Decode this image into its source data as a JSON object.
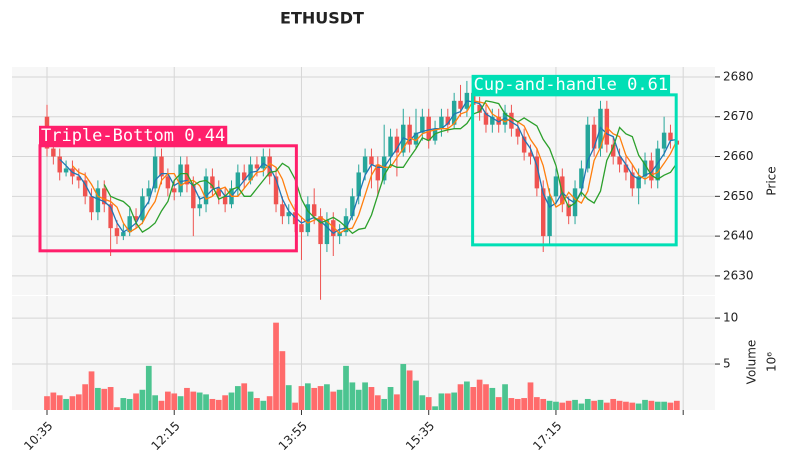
{
  "chart_data": {
    "type": "candlestick",
    "title": "ETHUSDT",
    "ylabel": "Price",
    "volume_label": "Volume",
    "volume_multiplier": "10⁶",
    "open": [
      2670,
      2662,
      2660,
      2656,
      2657,
      2655,
      2654,
      2650,
      2646,
      2652,
      2648,
      2642,
      2640,
      2641,
      2645,
      2644,
      2650,
      2652,
      2660,
      2655,
      2652,
      2651,
      2658,
      2653,
      2647,
      2648,
      2655,
      2652,
      2650,
      2648,
      2652,
      2656,
      2654,
      2658,
      2657,
      2660,
      2655,
      2648,
      2645,
      2646,
      2643,
      2641,
      2648,
      2645,
      2638,
      2644,
      2640,
      2641,
      2645,
      2650,
      2656,
      2660,
      2658,
      2654,
      2660,
      2665,
      2661,
      2668,
      2663,
      2666,
      2670,
      2664,
      2667,
      2670,
      2668,
      2674,
      2672,
      2676,
      2673,
      2671,
      2668,
      2670,
      2668,
      2671,
      2667,
      2665,
      2661,
      2660,
      2652,
      2640,
      2650,
      2655,
      2648,
      2645,
      2652,
      2657,
      2668,
      2662,
      2672,
      2663,
      2660,
      2658,
      2656,
      2652,
      2655,
      2659,
      2654,
      2662,
      2666,
      2664
    ],
    "high": [
      2673,
      2664,
      2662,
      2659,
      2659,
      2657,
      2656,
      2652,
      2654,
      2654,
      2650,
      2644,
      2643,
      2647,
      2647,
      2652,
      2654,
      2663,
      2662,
      2657,
      2654,
      2660,
      2660,
      2655,
      2650,
      2657,
      2657,
      2654,
      2652,
      2654,
      2658,
      2658,
      2660,
      2660,
      2662,
      2662,
      2657,
      2650,
      2648,
      2648,
      2645,
      2650,
      2652,
      2647,
      2646,
      2646,
      2643,
      2647,
      2652,
      2658,
      2662,
      2662,
      2660,
      2668,
      2667,
      2667,
      2672,
      2670,
      2672,
      2672,
      2672,
      2669,
      2672,
      2672,
      2676,
      2678,
      2679,
      2678,
      2675,
      2673,
      2672,
      2672,
      2673,
      2673,
      2669,
      2667,
      2663,
      2662,
      2654,
      2652,
      2657,
      2657,
      2650,
      2654,
      2659,
      2670,
      2670,
      2674,
      2674,
      2665,
      2662,
      2660,
      2658,
      2657,
      2661,
      2661,
      2664,
      2670,
      2668,
      2666
    ],
    "low": [
      2660,
      2658,
      2654,
      2655,
      2653,
      2652,
      2648,
      2644,
      2644,
      2646,
      2635,
      2638,
      2639,
      2640,
      2642,
      2643,
      2648,
      2651,
      2653,
      2650,
      2649,
      2650,
      2651,
      2640,
      2645,
      2646,
      2650,
      2648,
      2646,
      2647,
      2650,
      2652,
      2653,
      2655,
      2655,
      2653,
      2646,
      2643,
      2643,
      2641,
      2634,
      2640,
      2643,
      2624,
      2636,
      2635,
      2638,
      2640,
      2644,
      2648,
      2654,
      2652,
      2650,
      2653,
      2658,
      2655,
      2660,
      2661,
      2662,
      2664,
      2662,
      2663,
      2665,
      2666,
      2667,
      2670,
      2670,
      2671,
      2669,
      2666,
      2666,
      2666,
      2666,
      2665,
      2663,
      2659,
      2658,
      2650,
      2636,
      2638,
      2648,
      2646,
      2643,
      2643,
      2650,
      2656,
      2660,
      2660,
      2661,
      2658,
      2656,
      2654,
      2650,
      2648,
      2653,
      2652,
      2652,
      2660,
      2662,
      2661
    ],
    "close": [
      2662,
      2660,
      2656,
      2657,
      2655,
      2654,
      2650,
      2646,
      2652,
      2648,
      2642,
      2640,
      2641,
      2645,
      2644,
      2650,
      2652,
      2660,
      2655,
      2652,
      2651,
      2658,
      2653,
      2647,
      2648,
      2655,
      2652,
      2650,
      2648,
      2652,
      2656,
      2654,
      2658,
      2657,
      2660,
      2655,
      2648,
      2645,
      2646,
      2643,
      2641,
      2648,
      2645,
      2638,
      2644,
      2640,
      2641,
      2645,
      2650,
      2656,
      2660,
      2658,
      2654,
      2660,
      2665,
      2661,
      2668,
      2663,
      2666,
      2670,
      2664,
      2667,
      2670,
      2668,
      2674,
      2672,
      2676,
      2673,
      2671,
      2668,
      2670,
      2668,
      2671,
      2667,
      2665,
      2661,
      2660,
      2652,
      2640,
      2650,
      2655,
      2648,
      2645,
      2652,
      2657,
      2668,
      2662,
      2672,
      2663,
      2660,
      2658,
      2656,
      2652,
      2655,
      2659,
      2654,
      2662,
      2666,
      2664,
      2663
    ],
    "volume": [
      1.5,
      1.9,
      1.6,
      1.2,
      1.5,
      1.7,
      2.8,
      4.2,
      2.4,
      2.3,
      2.5,
      0.3,
      1.3,
      1.2,
      1.8,
      2.2,
      4.8,
      1.6,
      1.0,
      2.0,
      1.8,
      1.5,
      2.4,
      2.0,
      1.9,
      1.7,
      1.2,
      1.1,
      1.6,
      1.9,
      2.6,
      2.9,
      2.0,
      1.3,
      1.0,
      1.5,
      9.5,
      6.4,
      2.7,
      0.8,
      2.6,
      2.9,
      2.4,
      2.6,
      2.8,
      2.0,
      2.2,
      4.8,
      3.0,
      2.2,
      3.0,
      2.5,
      1.6,
      1.2,
      2.5,
      1.7,
      5.0,
      4.3,
      3.2,
      1.6,
      1.4,
      0.4,
      1.8,
      1.8,
      1.9,
      2.8,
      3.1,
      2.5,
      3.3,
      2.8,
      2.4,
      1.4,
      2.8,
      1.3,
      1.2,
      1.3,
      3.0,
      1.4,
      1.2,
      1.0,
      0.9,
      0.8,
      1.0,
      1.1,
      0.7,
      1.2,
      1.0,
      1.1,
      0.8,
      1.2,
      1.0,
      0.9,
      0.8,
      0.7,
      1.1,
      1.0,
      0.9,
      0.9,
      0.8,
      1.0
    ],
    "up_color": "#26a69a",
    "down_color": "#ef5350",
    "volume_up_color": "#4cc490",
    "volume_down_color": "#ff6b6b",
    "moving_averages": [
      {
        "color": "#1f77b4",
        "values": [
          null,
          null,
          2659.3,
          2657.7,
          2656,
          2655.3,
          2653,
          2650,
          2649.3,
          2648.7,
          2647.3,
          2643.3,
          2641,
          2642,
          2643.3,
          2646.3,
          2648.7,
          2654,
          2655.7,
          2655.7,
          2652.7,
          2653.7,
          2654,
          2652.7,
          2649.3,
          2650,
          2651.7,
          2652.3,
          2650,
          2650,
          2652,
          2654,
          2656,
          2656.3,
          2658.3,
          2657.3,
          2654.3,
          2649.3,
          2646.3,
          2644.7,
          2643.3,
          2644,
          2644.7,
          2643.7,
          2642.3,
          2640.7,
          2641.7,
          2642,
          2645.3,
          2650.3,
          2655.3,
          2658,
          2657.3,
          2657.3,
          2659.7,
          2662,
          2664.7,
          2664,
          2665.7,
          2666.3,
          2666.7,
          2667,
          2667,
          2668.3,
          2670.7,
          2671.3,
          2674,
          2673.7,
          2673.3,
          2670.7,
          2669.7,
          2668.7,
          2669.7,
          2668.7,
          2667.7,
          2664.3,
          2662,
          2657.7,
          2650.7,
          2647.3,
          2648.3,
          2651,
          2649.3,
          2648.3,
          2651.3,
          2659,
          2662.3,
          2667.3,
          2665.7,
          2665,
          2660.3,
          2658,
          2655.3,
          2654.3,
          2655.3,
          2656,
          2658.3,
          2660.7,
          2664,
          2664.3
        ]
      },
      {
        "color": "#ff7f0e",
        "values": [
          null,
          null,
          null,
          null,
          2657.7,
          2656,
          2655.3,
          2653,
          2650,
          2649.3,
          2648.7,
          2647.3,
          2643.3,
          2641,
          2642,
          2643.3,
          2646.3,
          2648.7,
          2654,
          2655.7,
          2655.7,
          2652.7,
          2653.7,
          2654,
          2652.7,
          2649.3,
          2650,
          2651.7,
          2652.3,
          2650,
          2650,
          2652,
          2654,
          2656,
          2656.3,
          2658.3,
          2657.3,
          2654.3,
          2649.3,
          2646.3,
          2644.7,
          2643.3,
          2644,
          2644.7,
          2643.7,
          2642.3,
          2640.7,
          2641.7,
          2642,
          2645.3,
          2650.3,
          2655.3,
          2658,
          2657.3,
          2657.3,
          2659.7,
          2662,
          2664.7,
          2664,
          2665.7,
          2666.3,
          2666.7,
          2667,
          2667,
          2668.3,
          2670.7,
          2671.3,
          2674,
          2673.7,
          2673.3,
          2670.7,
          2669.7,
          2668.7,
          2669.7,
          2668.7,
          2667.7,
          2664.3,
          2662,
          2657.7,
          2650.7,
          2647.3,
          2648.3,
          2651,
          2649.3,
          2648.3,
          2651.3,
          2659,
          2662.3,
          2667.3,
          2665.7,
          2665,
          2660.3,
          2658,
          2655.3,
          2654.3,
          2655.3,
          2656,
          2658.3,
          2660.7,
          2664
        ]
      },
      {
        "color": "#2ca02c",
        "values": [
          null,
          null,
          null,
          null,
          null,
          null,
          null,
          null,
          null,
          2653,
          2650,
          2649.3,
          2648.7,
          2647.3,
          2643.3,
          2641,
          2642,
          2643.3,
          2646.3,
          2648.7,
          2654,
          2655.7,
          2655.7,
          2652.7,
          2653.7,
          2654,
          2652.7,
          2649.3,
          2650,
          2651.7,
          2652.3,
          2650,
          2650,
          2652,
          2654,
          2656,
          2656.3,
          2658.3,
          2657.3,
          2654.3,
          2649.3,
          2646.3,
          2644.7,
          2643.3,
          2644,
          2644.7,
          2643.7,
          2642.3,
          2640.7,
          2641.7,
          2642,
          2645.3,
          2650.3,
          2655.3,
          2658,
          2657.3,
          2657.3,
          2659.7,
          2662,
          2664.7,
          2664,
          2665.7,
          2666.3,
          2666.7,
          2667,
          2667,
          2668.3,
          2670.7,
          2671.3,
          2674,
          2673.7,
          2673.3,
          2670.7,
          2669.7,
          2668.7,
          2669.7,
          2668.7,
          2667.7,
          2664.3,
          2662,
          2657.7,
          2650.7,
          2647.3,
          2648.3,
          2651,
          2649.3,
          2648.3,
          2651.3,
          2659,
          2662.3,
          2667.3,
          2665.7,
          2665,
          2660.3,
          2658,
          2655.3,
          2654.3,
          2655.3,
          2656,
          2658.3
        ]
      }
    ],
    "patterns": [
      {
        "label": "Triple-Bottom 0.44",
        "color": "#ff1f6b",
        "xlim": [
          -1.1,
          39.2
        ],
        "ylim": [
          2636.3,
          2662.7
        ]
      },
      {
        "label": "Cup-and-handle 0.61",
        "color": "#00dfb5",
        "xlim": [
          66.9,
          98.9
        ],
        "ylim": [
          2637.8,
          2675.5
        ]
      }
    ],
    "xlim": [
      -5.5,
      105
    ],
    "xticks": [
      {
        "value": 0,
        "label": "10:35"
      },
      {
        "value": 20,
        "label": "12:15"
      },
      {
        "value": 40,
        "label": "13:55"
      },
      {
        "value": 60,
        "label": "15:35"
      },
      {
        "value": 80,
        "label": "17:15"
      },
      {
        "value": 100,
        "label": null
      }
    ],
    "ylim": [
      2625.2,
      2682.5
    ],
    "yticks": [
      2630,
      2640,
      2650,
      2660,
      2670,
      2680
    ],
    "volume_ylim": [
      0,
      12.4
    ],
    "volume_yticks": [
      5,
      10
    ],
    "grid": true
  }
}
